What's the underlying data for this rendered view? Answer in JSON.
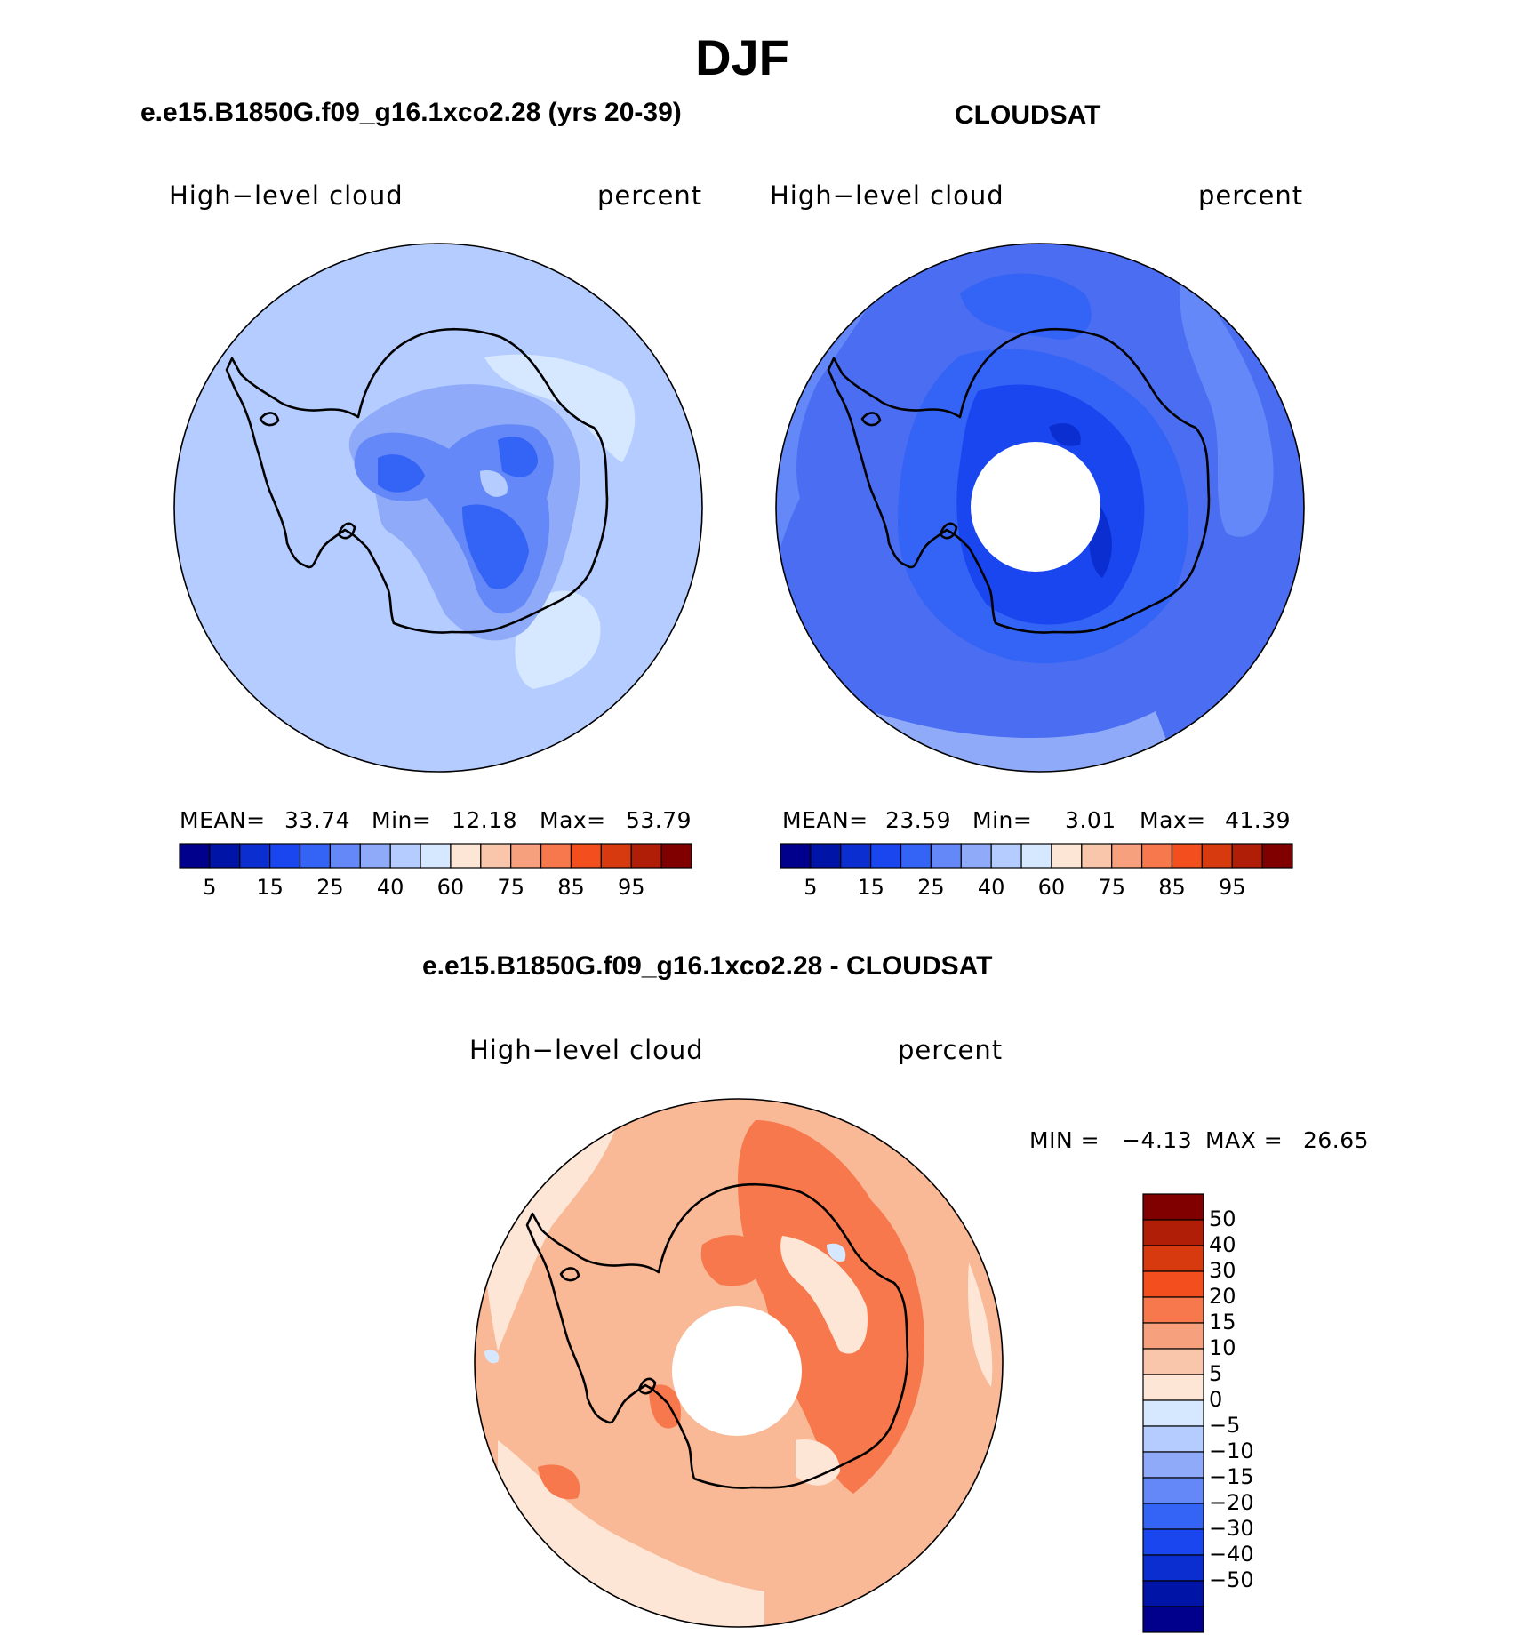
{
  "figure": {
    "title": "DJF",
    "diff_title": "e.e15.B1850G.f09_g16.1xco2.28 - CLOUDSAT"
  },
  "panels": [
    {
      "title": "e.e15.B1850G.f09_g16.1xco2.28 (yrs 20-39)",
      "variable": "High−level cloud",
      "units": "percent",
      "mean_label": "MEAN=",
      "mean": "33.74",
      "min_label": "Min=",
      "min": "12.18",
      "max_label": "Max=",
      "max": "53.79",
      "background": "#b4ccff"
    },
    {
      "title": "CLOUDSAT",
      "variable": "High−level cloud",
      "units": "percent",
      "mean_label": "MEAN=",
      "mean": "23.59",
      "min_label": "Min=",
      "min": "3.01",
      "max_label": "Max=",
      "max": "41.39",
      "background": "#4a6df2"
    }
  ],
  "diff_panel": {
    "variable": "High−level cloud",
    "units": "percent",
    "min_label": "MIN =",
    "min": "−4.13",
    "max_label": "MAX =",
    "max": "26.65",
    "background": "#f9b896"
  },
  "chart_data": [
    {
      "type": "heatmap",
      "title": "e.e15.B1850G.f09_g16.1xco2.28 (yrs 20-39)",
      "projection": "south-polar-stereographic",
      "field": "High-level cloud",
      "units": "percent",
      "mean": 33.74,
      "min": 12.18,
      "max": 53.79,
      "levels": [
        5,
        10,
        15,
        20,
        25,
        30,
        40,
        50,
        60,
        70,
        75,
        80,
        85,
        90,
        95
      ],
      "colorbar_ticks": [
        "5",
        "15",
        "25",
        "40",
        "60",
        "75",
        "85",
        "95"
      ]
    },
    {
      "type": "heatmap",
      "title": "CLOUDSAT",
      "projection": "south-polar-stereographic",
      "field": "High-level cloud",
      "units": "percent",
      "mean": 23.59,
      "min": 3.01,
      "max": 41.39,
      "levels": [
        5,
        10,
        15,
        20,
        25,
        30,
        40,
        50,
        60,
        70,
        75,
        80,
        85,
        90,
        95
      ],
      "colorbar_ticks": [
        "5",
        "15",
        "25",
        "40",
        "60",
        "75",
        "85",
        "95"
      ]
    },
    {
      "type": "heatmap",
      "title": "e.e15.B1850G.f09_g16.1xco2.28 - CLOUDSAT",
      "projection": "south-polar-stereographic",
      "field": "High-level cloud",
      "units": "percent",
      "min": -4.13,
      "max": 26.65,
      "levels": [
        -50,
        -40,
        -30,
        -20,
        -15,
        -10,
        -5,
        0,
        5,
        10,
        15,
        20,
        30,
        40,
        50
      ],
      "colorbar_ticks": [
        "50",
        "40",
        "30",
        "20",
        "15",
        "10",
        "5",
        "0",
        "−5",
        "−10",
        "−15",
        "−20",
        "−30",
        "−40",
        "−50"
      ]
    }
  ],
  "colormap": {
    "abs": [
      "#00008c",
      "#0015a8",
      "#0a2ed0",
      "#1a46f0",
      "#3464f6",
      "#6488f8",
      "#8eaaf8",
      "#b4ccff",
      "#d6e8ff",
      "#fde6d6",
      "#f9c6ac",
      "#f7a07e",
      "#f7784c",
      "#f24e1e",
      "#d83a10",
      "#b01e08",
      "#800000"
    ],
    "diff": [
      "#800000",
      "#b01e08",
      "#d83a10",
      "#f24e1e",
      "#f7784c",
      "#f7a07e",
      "#f9c6ac",
      "#fde6d6",
      "#d6e8ff",
      "#b4ccff",
      "#8eaaf8",
      "#6488f8",
      "#3464f6",
      "#1a46f0",
      "#0a2ed0",
      "#0015a8",
      "#00008c"
    ]
  }
}
